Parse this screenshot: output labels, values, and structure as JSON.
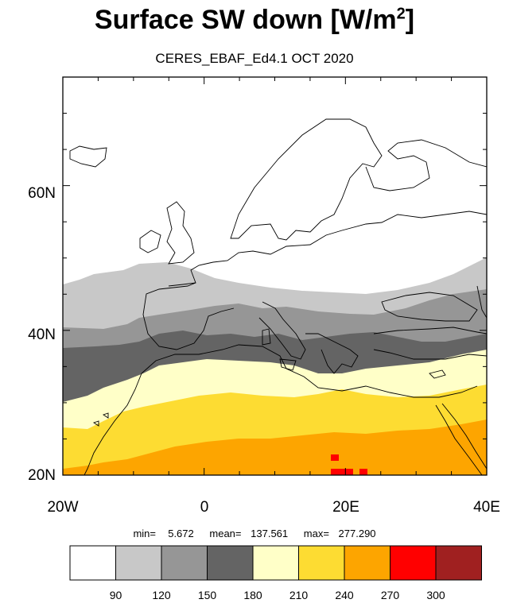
{
  "title_main": "Surface SW down [W/m",
  "title_sup": "2",
  "title_end": "]",
  "subtitle": "CERES_EBAF_Ed4.1 OCT 2020",
  "map": {
    "lon_range": [
      -20,
      40
    ],
    "lat_range": [
      20,
      75
    ],
    "y_ticks": [
      "60N",
      "40N",
      "20N"
    ],
    "x_ticks": [
      "20W",
      "0",
      "20E",
      "40E"
    ]
  },
  "stats": {
    "min_label": "min=",
    "min_value": "5.672",
    "mean_label": "mean=",
    "mean_value": "137.561",
    "max_label": "max=",
    "max_value": "277.290"
  },
  "colorbar": {
    "colors": [
      "#ffffff",
      "#c8c8c8",
      "#969696",
      "#646464",
      "#ffffc8",
      "#fddc32",
      "#fda500",
      "#ff0000",
      "#a02020"
    ],
    "labels": [
      "90",
      "120",
      "150",
      "180",
      "210",
      "240",
      "270",
      "300"
    ]
  },
  "colors": {
    "coast": "#000000",
    "frame": "#000000"
  }
}
